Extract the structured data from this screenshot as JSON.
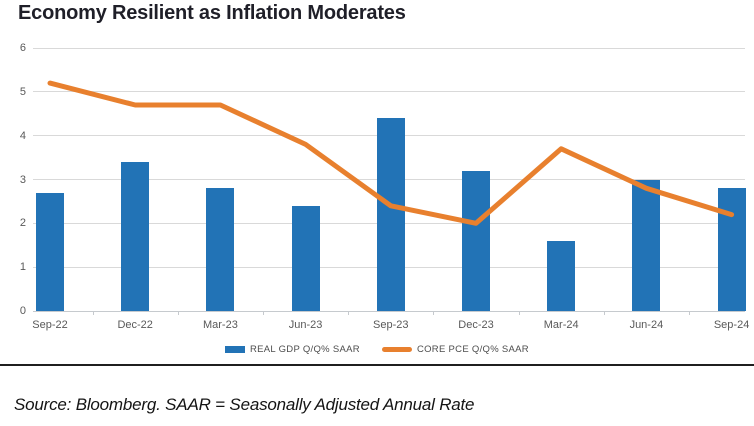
{
  "title": "Economy Resilient as Inflation Moderates",
  "source_note": "Source: Bloomberg. SAAR = Seasonally Adjusted Annual Rate",
  "colors": {
    "bar": "#2273b6",
    "line": "#e8802e",
    "grid": "#d9d9d9",
    "axis_text": "#595959",
    "title_text": "#1f1f28",
    "divider": "#1f1f1f"
  },
  "chart_data": {
    "type": "combo",
    "categories": [
      "Sep-22",
      "Dec-22",
      "Mar-23",
      "Jun-23",
      "Sep-23",
      "Dec-23",
      "Mar-24",
      "Jun-24",
      "Sep-24"
    ],
    "series": [
      {
        "name": "REAL GDP Q/Q% SAAR",
        "type": "bar",
        "color": "#2273b6",
        "values": [
          2.7,
          3.4,
          2.8,
          2.4,
          4.4,
          3.2,
          1.6,
          3.0,
          2.8
        ]
      },
      {
        "name": "CORE PCE Q/Q% SAAR",
        "type": "line",
        "color": "#e8802e",
        "values": [
          5.2,
          4.7,
          4.7,
          3.8,
          2.4,
          2.0,
          3.7,
          2.8,
          2.2
        ]
      }
    ],
    "title": "Economy Resilient as Inflation Moderates",
    "xlabel": "",
    "ylabel": "",
    "ylim": [
      0,
      6
    ],
    "yticks": [
      0,
      1,
      2,
      3,
      4,
      5,
      6
    ],
    "grid": "horizontal",
    "legend_position": "bottom-center"
  }
}
